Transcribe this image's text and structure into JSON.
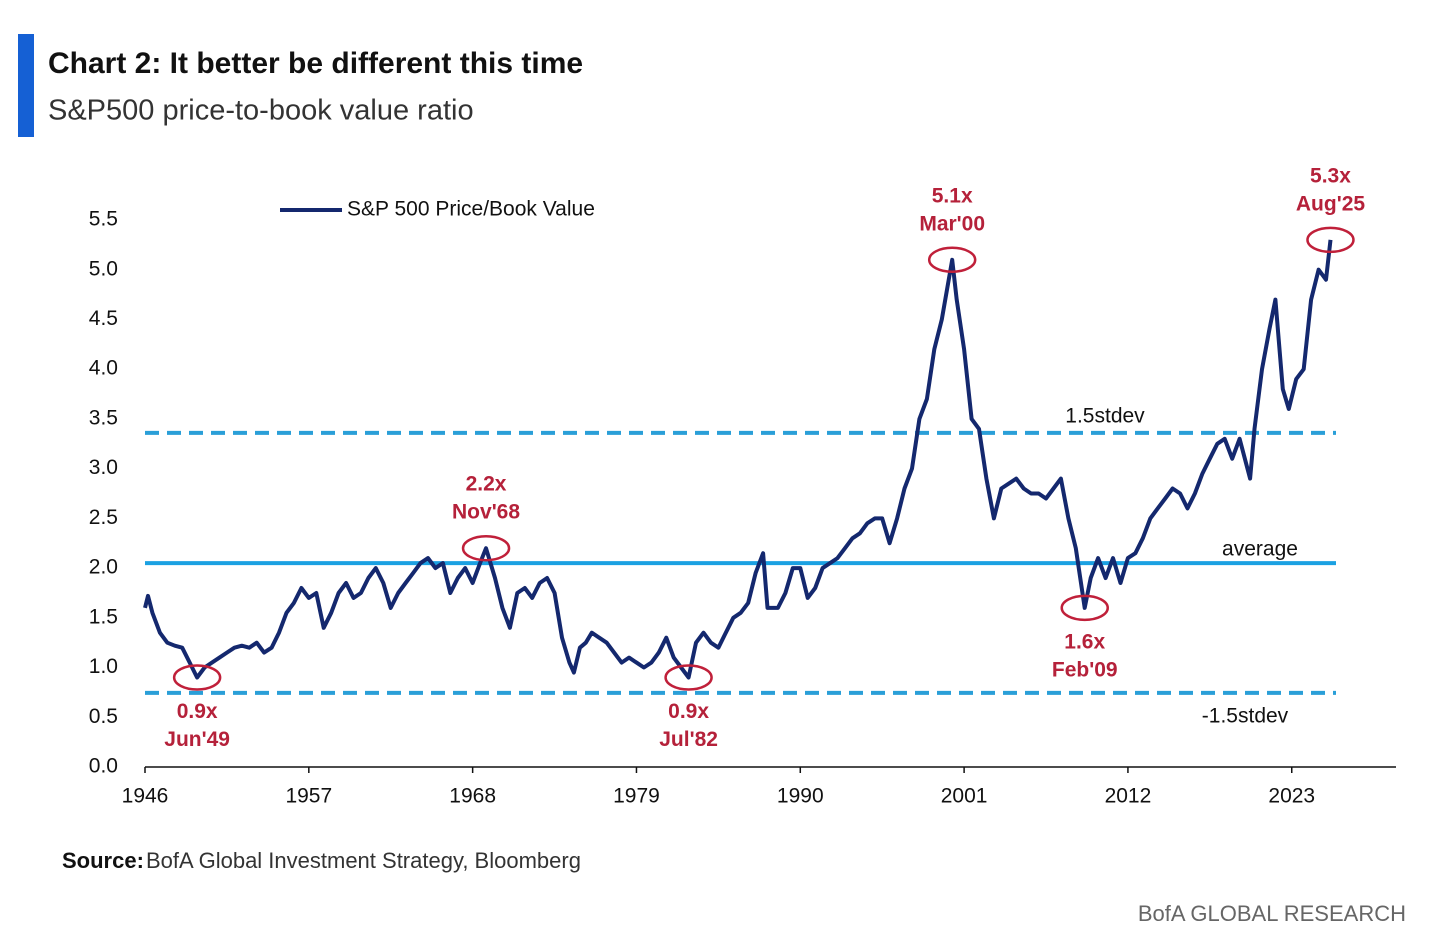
{
  "chart_data": {
    "type": "line",
    "title": "Chart 2: It better be different this time",
    "subtitle": "S&P500 price-to-book value ratio",
    "source_label": "Source:",
    "source": "BofA Global Investment Strategy, Bloomberg",
    "brand": "BofA GLOBAL RESEARCH",
    "xlim": [
      1946,
      2030
    ],
    "ylim": [
      0,
      5.5
    ],
    "xticks": [
      1946,
      1957,
      1968,
      1979,
      1990,
      2001,
      2012,
      2023
    ],
    "yticks": [
      {
        "value": 0,
        "label": "0.0"
      },
      0.5,
      {
        "value": 1,
        "label": "1.0"
      },
      1.5,
      {
        "value": 2,
        "label": "2.0"
      },
      2.5,
      {
        "value": 3,
        "label": "3.0"
      },
      3.5,
      {
        "value": 4,
        "label": "4.0"
      },
      4.5,
      {
        "value": 5,
        "label": "5.0"
      },
      5.5
    ],
    "legend": "top-left",
    "series": [
      {
        "name": "S&P 500 Price/Book Value",
        "color": "#14286e",
        "x": [
          1946.0,
          1946.2,
          1946.5,
          1947,
          1947.5,
          1948,
          1948.5,
          1949,
          1949.5,
          1950,
          1950.5,
          1951,
          1951.5,
          1952,
          1952.5,
          1953,
          1953.5,
          1954,
          1954.5,
          1955,
          1955.5,
          1956,
          1956.5,
          1957,
          1957.5,
          1958,
          1958.5,
          1959,
          1959.5,
          1960,
          1960.5,
          1961,
          1961.5,
          1962,
          1962.5,
          1963,
          1963.5,
          1964,
          1964.5,
          1965,
          1965.5,
          1966,
          1966.5,
          1967,
          1967.5,
          1968,
          1968.5,
          1968.9,
          1969.5,
          1970,
          1970.5,
          1971,
          1971.5,
          1972,
          1972.5,
          1973,
          1973.5,
          1974,
          1974.5,
          1974.8,
          1975.2,
          1975.6,
          1976,
          1976.5,
          1977,
          1977.5,
          1978,
          1978.5,
          1979,
          1979.5,
          1980,
          1980.5,
          1981,
          1981.5,
          1982,
          1982.5,
          1983,
          1983.5,
          1984,
          1984.5,
          1985,
          1985.5,
          1986,
          1986.5,
          1987,
          1987.5,
          1987.8,
          1988.5,
          1989,
          1989.5,
          1990,
          1990.5,
          1991,
          1991.5,
          1992,
          1992.5,
          1993,
          1993.5,
          1994,
          1994.5,
          1995,
          1995.5,
          1996,
          1996.5,
          1997,
          1997.5,
          1998,
          1998.5,
          1999,
          1999.5,
          2000.2,
          2000.5,
          2001,
          2001.5,
          2002,
          2002.5,
          2003,
          2003.5,
          2004,
          2004.5,
          2005,
          2005.5,
          2006,
          2006.5,
          2007,
          2007.5,
          2008,
          2008.5,
          2009.1,
          2009.5,
          2010,
          2010.5,
          2011,
          2011.5,
          2012,
          2012.5,
          2013,
          2013.5,
          2014,
          2014.5,
          2015,
          2015.5,
          2016,
          2016.5,
          2017,
          2017.5,
          2018,
          2018.5,
          2019,
          2019.5,
          2020.2,
          2020.5,
          2021,
          2021.5,
          2021.9,
          2022.4,
          2022.8,
          2023.3,
          2023.8,
          2024.3,
          2024.8,
          2025.3,
          2025.6
        ],
        "values": [
          1.6,
          1.72,
          1.55,
          1.35,
          1.25,
          1.22,
          1.2,
          1.05,
          0.9,
          1.0,
          1.05,
          1.1,
          1.15,
          1.2,
          1.22,
          1.2,
          1.25,
          1.15,
          1.2,
          1.35,
          1.55,
          1.65,
          1.8,
          1.7,
          1.75,
          1.4,
          1.55,
          1.75,
          1.85,
          1.7,
          1.75,
          1.9,
          2.0,
          1.85,
          1.6,
          1.75,
          1.85,
          1.95,
          2.05,
          2.1,
          2.0,
          2.05,
          1.75,
          1.9,
          2.0,
          1.85,
          2.05,
          2.2,
          1.9,
          1.6,
          1.4,
          1.75,
          1.8,
          1.7,
          1.85,
          1.9,
          1.75,
          1.3,
          1.05,
          0.95,
          1.2,
          1.25,
          1.35,
          1.3,
          1.25,
          1.15,
          1.05,
          1.1,
          1.05,
          1.0,
          1.05,
          1.15,
          1.3,
          1.1,
          1.0,
          0.9,
          1.25,
          1.35,
          1.25,
          1.2,
          1.35,
          1.5,
          1.55,
          1.65,
          1.95,
          2.15,
          1.6,
          1.6,
          1.75,
          2.0,
          2.0,
          1.7,
          1.8,
          2.0,
          2.05,
          2.1,
          2.2,
          2.3,
          2.35,
          2.45,
          2.5,
          2.5,
          2.25,
          2.5,
          2.8,
          3.0,
          3.5,
          3.7,
          4.2,
          4.5,
          5.1,
          4.7,
          4.2,
          3.5,
          3.4,
          2.9,
          2.5,
          2.8,
          2.85,
          2.9,
          2.8,
          2.75,
          2.75,
          2.7,
          2.8,
          2.9,
          2.5,
          2.2,
          1.6,
          1.9,
          2.1,
          1.9,
          2.1,
          1.85,
          2.1,
          2.15,
          2.3,
          2.5,
          2.6,
          2.7,
          2.8,
          2.75,
          2.6,
          2.75,
          2.95,
          3.1,
          3.25,
          3.3,
          3.1,
          3.3,
          2.9,
          3.4,
          4.0,
          4.4,
          4.7,
          3.8,
          3.6,
          3.9,
          4.0,
          4.7,
          5.0,
          4.9,
          5.3
        ]
      }
    ],
    "reference_lines": [
      {
        "label": "1.5stdev",
        "value": 3.36,
        "color": "#2a9fd8",
        "style": "dashed"
      },
      {
        "label": "average",
        "value": 2.05,
        "color": "#1ba1e2",
        "style": "solid"
      },
      {
        "label": "-1.5stdev",
        "value": 0.745,
        "color": "#2a9fd8",
        "style": "dashed"
      }
    ],
    "annotations": [
      {
        "label": "0.9x",
        "date": "Jun'49",
        "x": 1949.5,
        "y": 0.9,
        "position": "below"
      },
      {
        "label": "2.2x",
        "date": "Nov'68",
        "x": 1968.9,
        "y": 2.2,
        "position": "above"
      },
      {
        "label": "0.9x",
        "date": "Jul'82",
        "x": 1982.5,
        "y": 0.9,
        "position": "below"
      },
      {
        "label": "5.1x",
        "date": "Mar'00",
        "x": 2000.2,
        "y": 5.1,
        "position": "above"
      },
      {
        "label": "1.6x",
        "date": "Feb'09",
        "x": 2009.1,
        "y": 1.6,
        "position": "below"
      },
      {
        "label": "5.3x",
        "date": "Aug'25",
        "x": 2025.6,
        "y": 5.3,
        "position": "above"
      }
    ]
  }
}
